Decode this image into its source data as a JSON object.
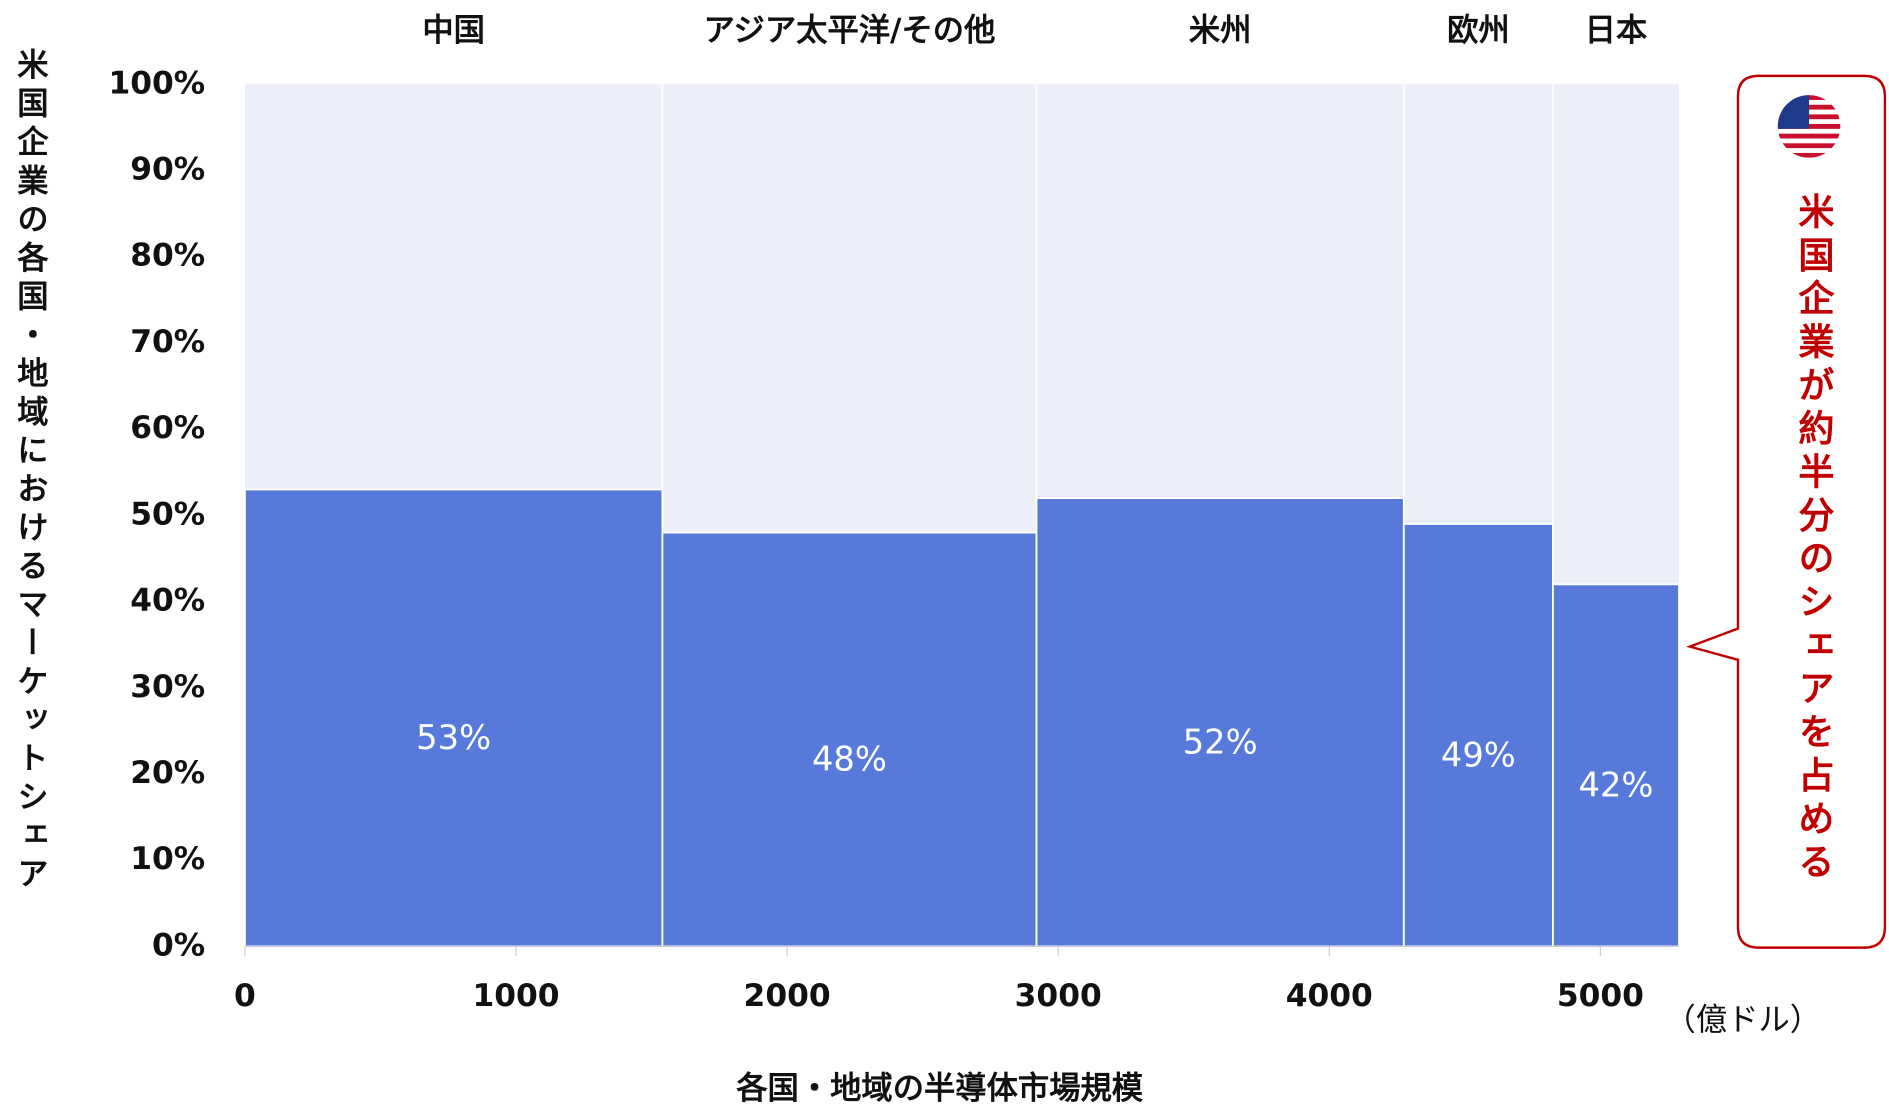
{
  "chart_data": {
    "type": "mekko",
    "categories": [
      "中国",
      "アジア太平洋/その他",
      "米州",
      "欧州",
      "日本"
    ],
    "widths": [
      1540,
      1380,
      1355,
      550,
      465
    ],
    "values": [
      53,
      48,
      52,
      49,
      42
    ],
    "value_labels": [
      "53%",
      "48%",
      "52%",
      "49%",
      "42%"
    ],
    "color": "#5779d9",
    "xlim": [
      0,
      5290
    ],
    "xticks": [
      0,
      1000,
      2000,
      3000,
      4000,
      5000
    ],
    "ylim": [
      0,
      100
    ],
    "yticks": [
      {
        "value": 0,
        "label": "0%"
      },
      {
        "value": 10,
        "label": "10%"
      },
      {
        "value": 20,
        "label": "20%"
      },
      {
        "value": 30,
        "label": "30%"
      },
      {
        "value": 40,
        "label": "40%"
      },
      {
        "value": 50,
        "label": "50%"
      },
      {
        "value": 60,
        "label": "60%"
      },
      {
        "value": 70,
        "label": "70%"
      },
      {
        "value": 80,
        "label": "80%"
      },
      {
        "value": 90,
        "label": "90%"
      },
      {
        "value": 100,
        "label": "100%"
      }
    ],
    "x_label": "各国・地域の半導体市場規模",
    "x_unit": "（億ドル）",
    "y_label": "米国企業の各国・地域におけるマーケットシェア",
    "annotation": "米国企業が約半分のシェアを占める"
  }
}
